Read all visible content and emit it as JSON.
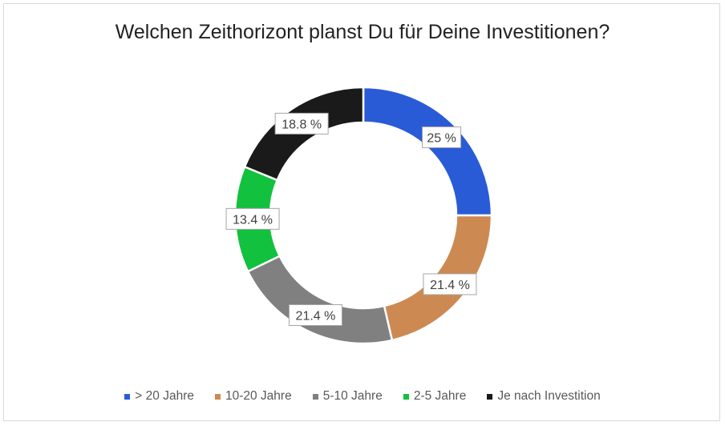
{
  "chart_data": {
    "type": "pie",
    "variant": "donut",
    "title": "Welchen Zeithorizont planst Du für Deine Investitionen?",
    "categories": [
      "> 20 Jahre",
      "10-20 Jahre",
      "5-10 Jahre",
      "2-5 Jahre",
      "Je nach Investition"
    ],
    "values": [
      25,
      21.4,
      21.4,
      13.4,
      18.8
    ],
    "labels": [
      "25 %",
      "21.4 %",
      "21.4 %",
      "13.4 %",
      "18.8 %"
    ],
    "colors": [
      "#2a5bd7",
      "#cc8a52",
      "#808080",
      "#12c13d",
      "#1a1a1a"
    ],
    "legend_position": "bottom"
  }
}
